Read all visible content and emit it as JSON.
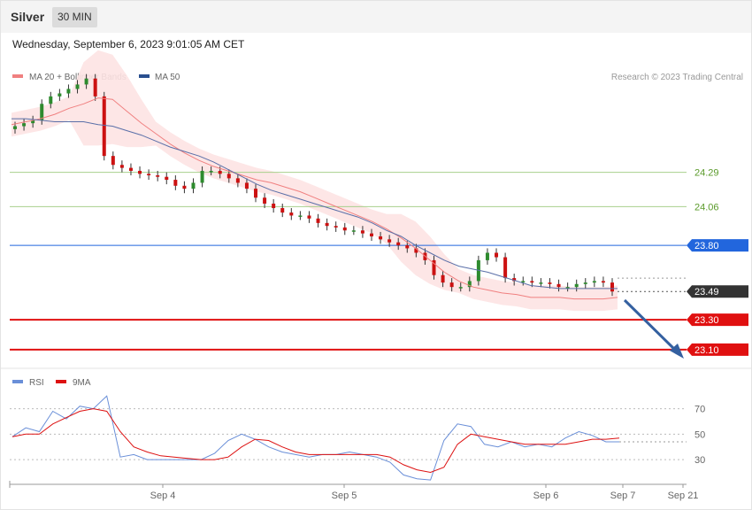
{
  "header": {
    "symbol": "Silver",
    "timeframe": "30 MIN"
  },
  "timestamp": "Wednesday, September 6, 2023 9:01:05 AM CET",
  "legend": {
    "ma20_bb": "MA 20 + Bollinger Bands",
    "ma50": "MA 50",
    "credit": "Research © 2023 Trading Central",
    "rsi": "RSI",
    "rsi_ma": "9MA"
  },
  "colors": {
    "bullish": "#2e8b2e",
    "bearish": "#cc1111",
    "bollinger_fill": "#fde3e3",
    "ma20": "#f08080",
    "ma50": "#5a6fa8",
    "rsi": "#6a8fd8",
    "rsi_ma": "#dd1111",
    "resistance": "#a8d08d",
    "pivot": "#2266dd",
    "support": "#e01010",
    "current": "#333333",
    "arrow": "#3460a0"
  },
  "chart_data": [
    {
      "type": "candlestick",
      "title": "Silver",
      "timeframe": "30 MIN",
      "ylim": [
        22.98,
        25.15
      ],
      "levels": [
        {
          "label": "24.29",
          "value": 24.29,
          "kind": "resistance"
        },
        {
          "label": "24.06",
          "value": 24.06,
          "kind": "resistance"
        },
        {
          "label": "23.80",
          "value": 23.8,
          "kind": "pivot"
        },
        {
          "label": "23.49",
          "value": 23.49,
          "kind": "current"
        },
        {
          "label": "23.30",
          "value": 23.3,
          "kind": "support"
        },
        {
          "label": "23.10",
          "value": 23.1,
          "kind": "support"
        }
      ],
      "projection": {
        "from": 23.49,
        "to": 23.1,
        "direction": "down"
      },
      "series": [
        {
          "name": "MA 20 + Bollinger Bands",
          "values": [
            24.61,
            24.63,
            24.65,
            24.68,
            24.72,
            24.75,
            24.79,
            24.78,
            24.7,
            24.62,
            24.55,
            24.48,
            24.42,
            24.37,
            24.33,
            24.3,
            24.27,
            24.24,
            24.22,
            24.19,
            24.16,
            24.12,
            24.08,
            24.04,
            24.0,
            23.96,
            23.91,
            23.85,
            23.78,
            23.7,
            23.62,
            23.56,
            23.52,
            23.5,
            23.48,
            23.47,
            23.45,
            23.45,
            23.45,
            23.44,
            23.44,
            23.44,
            23.45
          ]
        },
        {
          "name": "MA 50",
          "values": [
            24.65,
            24.65,
            24.64,
            24.63,
            24.63,
            24.63,
            24.61,
            24.6,
            24.57,
            24.54,
            24.5,
            24.46,
            24.43,
            24.4,
            24.36,
            24.31,
            24.26,
            24.21,
            24.17,
            24.14,
            24.11,
            24.08,
            24.05,
            24.02,
            23.99,
            23.95,
            23.9,
            23.86,
            23.8,
            23.75,
            23.7,
            23.66,
            23.64,
            23.62,
            23.59,
            23.56,
            23.53,
            23.52,
            23.51,
            23.51,
            23.51,
            23.51,
            23.51
          ]
        }
      ]
    },
    {
      "type": "line",
      "title": "RSI",
      "ylim": [
        12,
        85
      ],
      "yticks": [
        70,
        50,
        30
      ],
      "x_labels": [
        "Sep 4",
        "Sep 5",
        "Sep 6",
        "Sep 7",
        "Sep 21"
      ],
      "series": [
        {
          "name": "RSI",
          "values": [
            48,
            55,
            52,
            68,
            62,
            72,
            70,
            80,
            32,
            34,
            30,
            30,
            30,
            30,
            30,
            35,
            45,
            50,
            46,
            40,
            36,
            34,
            32,
            34,
            34,
            36,
            34,
            32,
            28,
            18,
            15,
            14,
            45,
            58,
            56,
            42,
            40,
            44,
            40,
            42,
            40,
            47,
            52,
            49,
            44,
            44
          ]
        },
        {
          "name": "9MA",
          "values": [
            48,
            50,
            50,
            58,
            63,
            68,
            70,
            68,
            52,
            40,
            36,
            33,
            32,
            31,
            30,
            30,
            32,
            40,
            46,
            45,
            40,
            36,
            34,
            34,
            34,
            34,
            34,
            34,
            32,
            26,
            22,
            20,
            24,
            42,
            50,
            48,
            46,
            44,
            42,
            42,
            42,
            42,
            44,
            46,
            46,
            47
          ]
        }
      ]
    }
  ]
}
